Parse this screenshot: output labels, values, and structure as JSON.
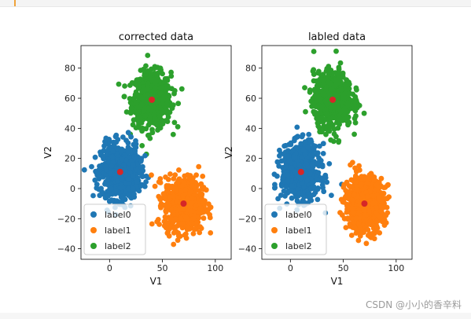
{
  "chart_data": [
    {
      "type": "scatter",
      "title": "corrected data",
      "xlabel": "V1",
      "ylabel": "V2",
      "xlim": [
        -27,
        115
      ],
      "ylim": [
        -47,
        95
      ],
      "xticks": [
        0,
        50,
        100
      ],
      "yticks": [
        -40,
        -20,
        0,
        20,
        40,
        60,
        80
      ],
      "grid": false,
      "legend_position": "lower-left",
      "series": [
        {
          "name": "label0",
          "color": "#1f77b4",
          "center": [
            10,
            11
          ],
          "spread": [
            9,
            9
          ]
        },
        {
          "name": "label1",
          "color": "#ff7f0e",
          "center": [
            70,
            -10
          ],
          "spread": [
            9,
            9
          ]
        },
        {
          "name": "label2",
          "color": "#2ca02c",
          "center": [
            40,
            59
          ],
          "spread": [
            9,
            9
          ]
        }
      ],
      "centroids": {
        "color": "#d62728",
        "points": [
          [
            10,
            11
          ],
          [
            70,
            -10
          ],
          [
            40,
            59
          ]
        ]
      }
    },
    {
      "type": "scatter",
      "title": "labled data",
      "xlabel": "V1",
      "ylabel": "V2",
      "xlim": [
        -27,
        115
      ],
      "ylim": [
        -47,
        95
      ],
      "xticks": [
        0,
        50,
        100
      ],
      "yticks": [
        -40,
        -20,
        0,
        20,
        40,
        60,
        80
      ],
      "grid": false,
      "legend_position": "lower-left",
      "series": [
        {
          "name": "label0",
          "color": "#1f77b4",
          "center": [
            10,
            11
          ],
          "spread": [
            9,
            9
          ]
        },
        {
          "name": "label1",
          "color": "#ff7f0e",
          "center": [
            70,
            -10
          ],
          "spread": [
            9,
            9
          ]
        },
        {
          "name": "label2",
          "color": "#2ca02c",
          "center": [
            40,
            59
          ],
          "spread": [
            9,
            9
          ]
        }
      ],
      "centroids": {
        "color": "#d62728",
        "points": [
          [
            10,
            11
          ],
          [
            70,
            -10
          ],
          [
            40,
            59
          ]
        ]
      }
    }
  ],
  "watermark": "CSDN @小小的香辛料"
}
